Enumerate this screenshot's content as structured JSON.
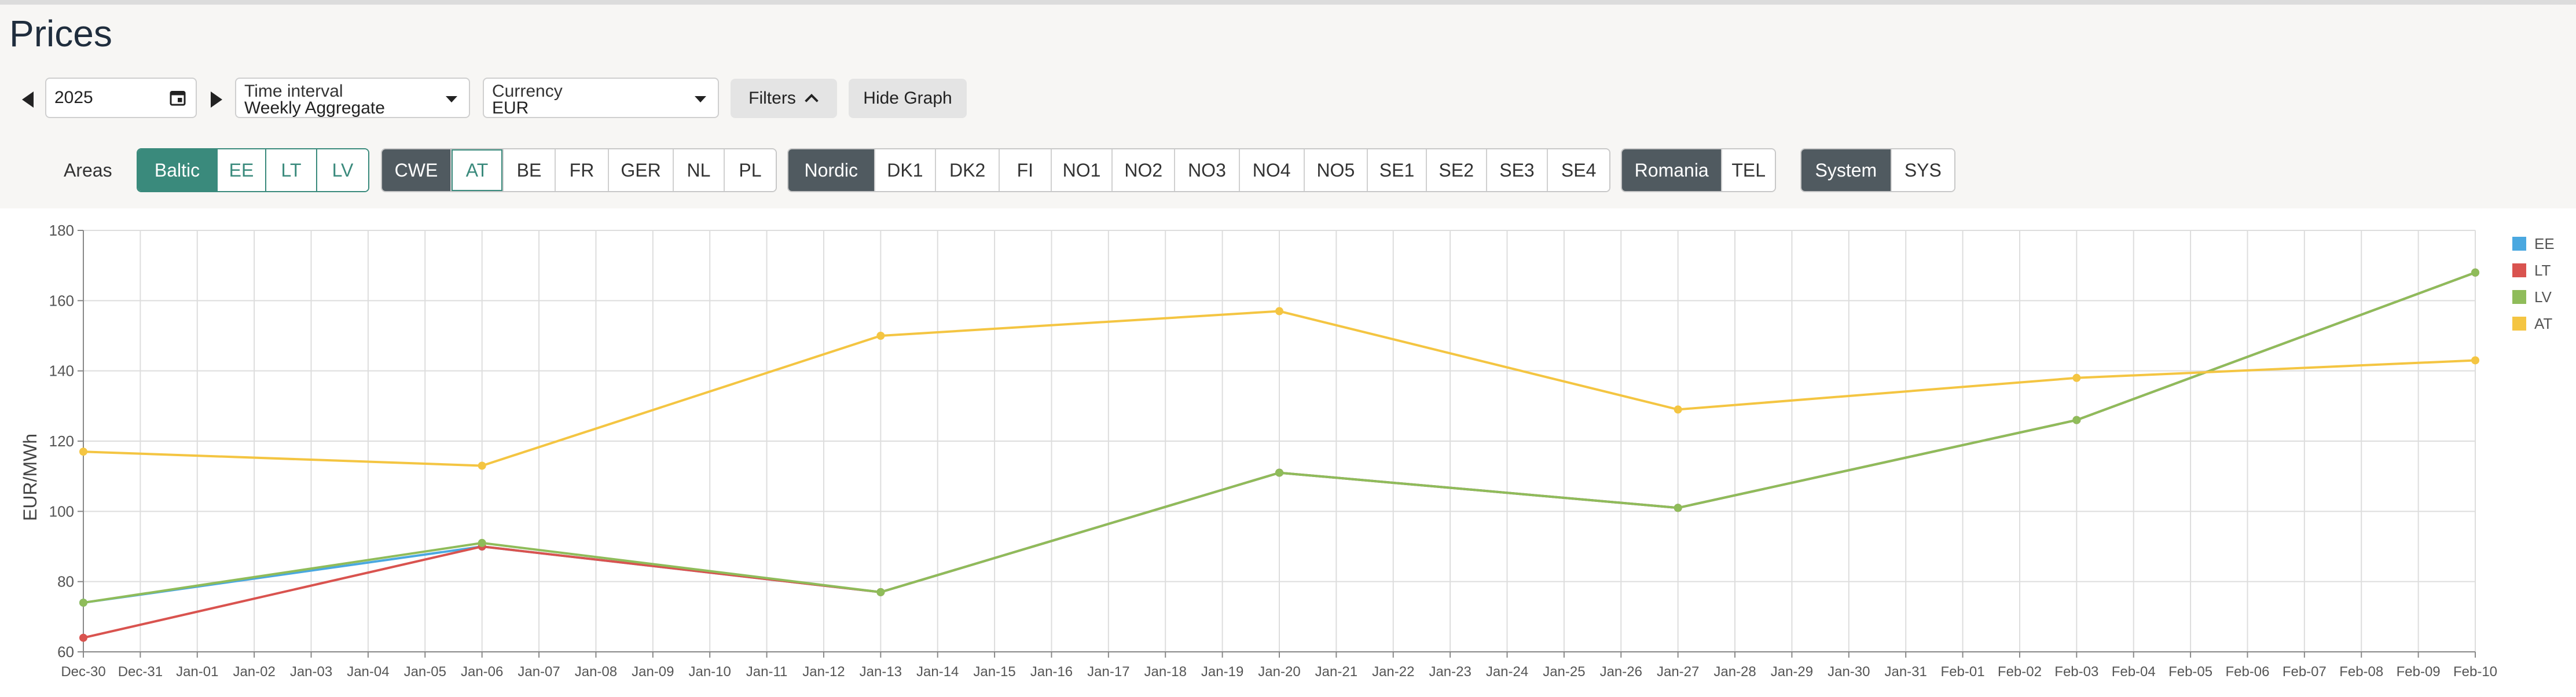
{
  "page": {
    "title": "Prices"
  },
  "controls": {
    "year": {
      "value": "2025",
      "icon": "calendar-icon"
    },
    "time_interval": {
      "label": "Time interval",
      "value": "Weekly Aggregate"
    },
    "currency": {
      "label": "Currency",
      "value": "EUR"
    },
    "filters_label": "Filters",
    "hide_graph_label": "Hide Graph"
  },
  "areas": {
    "label": "Areas",
    "groups": [
      {
        "name": "Baltic",
        "items": [
          "EE",
          "LT",
          "LV"
        ]
      },
      {
        "name": "CWE",
        "items": [
          "AT",
          "BE",
          "FR",
          "GER",
          "NL",
          "PL"
        ]
      },
      {
        "name": "Nordic",
        "items": [
          "DK1",
          "DK2",
          "FI",
          "NO1",
          "NO2",
          "NO3",
          "NO4",
          "NO5",
          "SE1",
          "SE2",
          "SE3",
          "SE4"
        ]
      },
      {
        "name": "Romania",
        "items": [
          "TEL"
        ]
      },
      {
        "name": "System",
        "items": [
          "SYS"
        ]
      }
    ]
  },
  "colors": {
    "accent": "#3a8a7c",
    "dark_button": "#505a60",
    "EE": "#4aa8e0",
    "LT": "#d9534f",
    "LV": "#8fbc5a",
    "AT": "#f4c542"
  },
  "chart_data": {
    "type": "line",
    "ylabel": "EUR/MWh",
    "ylim": [
      60,
      180
    ],
    "yticks": [
      60,
      80,
      100,
      120,
      140,
      160,
      180
    ],
    "grid": true,
    "legend_position": "right",
    "x_tick_labels": [
      "Dec-30",
      "Dec-31",
      "Jan-01",
      "Jan-02",
      "Jan-03",
      "Jan-04",
      "Jan-05",
      "Jan-06",
      "Jan-07",
      "Jan-08",
      "Jan-09",
      "Jan-10",
      "Jan-11",
      "Jan-12",
      "Jan-13",
      "Jan-14",
      "Jan-15",
      "Jan-16",
      "Jan-17",
      "Jan-18",
      "Jan-19",
      "Jan-20",
      "Jan-21",
      "Jan-22",
      "Jan-23",
      "Jan-24",
      "Jan-25",
      "Jan-26",
      "Jan-27",
      "Jan-28",
      "Jan-29",
      "Jan-30",
      "Jan-31",
      "Feb-01",
      "Feb-02",
      "Feb-03",
      "Feb-04",
      "Feb-05",
      "Feb-06",
      "Feb-07",
      "Feb-08",
      "Feb-09",
      "Feb-10"
    ],
    "x": [
      "Dec-30",
      "Jan-06",
      "Jan-13",
      "Jan-20",
      "Jan-27",
      "Feb-03",
      "Feb-10"
    ],
    "series": [
      {
        "name": "EE",
        "values": [
          74,
          90,
          77,
          111,
          101,
          126,
          168
        ]
      },
      {
        "name": "LT",
        "values": [
          64,
          90,
          77,
          111,
          101,
          126,
          168
        ]
      },
      {
        "name": "LV",
        "values": [
          74,
          91,
          77,
          111,
          101,
          126,
          168
        ]
      },
      {
        "name": "AT",
        "values": [
          117,
          113,
          150,
          157,
          129,
          138,
          143
        ]
      }
    ]
  }
}
